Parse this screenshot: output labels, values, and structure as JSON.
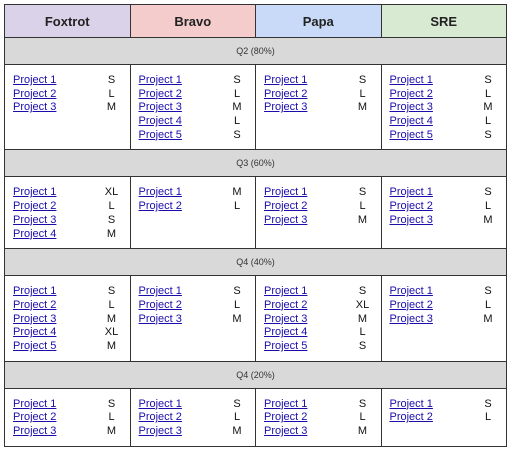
{
  "headers": [
    "Foxtrot",
    "Bravo",
    "Papa",
    "SRE"
  ],
  "header_colors": [
    "#d9d2e9",
    "#f4cccc",
    "#c9daf8",
    "#d9ead3"
  ],
  "quarters": [
    {
      "label": "Q2 (80%)",
      "teams": [
        [
          {
            "project": "Project 1",
            "size": "S"
          },
          {
            "project": "Project 2",
            "size": "L"
          },
          {
            "project": "Project 3",
            "size": "M"
          }
        ],
        [
          {
            "project": "Project 1",
            "size": "S"
          },
          {
            "project": "Project 2",
            "size": "L"
          },
          {
            "project": "Project 3",
            "size": "M"
          },
          {
            "project": "Project 4",
            "size": "L"
          },
          {
            "project": "Project 5",
            "size": "S"
          }
        ],
        [
          {
            "project": "Project 1",
            "size": "S"
          },
          {
            "project": "Project 2",
            "size": "L"
          },
          {
            "project": "Project 3",
            "size": "M"
          }
        ],
        [
          {
            "project": "Project 1",
            "size": "S"
          },
          {
            "project": "Project 2",
            "size": "L"
          },
          {
            "project": "Project 3",
            "size": "M"
          },
          {
            "project": "Project 4",
            "size": "L"
          },
          {
            "project": "Project 5",
            "size": "S"
          }
        ]
      ]
    },
    {
      "label": "Q3 (60%)",
      "teams": [
        [
          {
            "project": "Project 1",
            "size": "XL"
          },
          {
            "project": "Project 2",
            "size": "L"
          },
          {
            "project": "Project 3",
            "size": "S"
          },
          {
            "project": "Project 4",
            "size": "M"
          }
        ],
        [
          {
            "project": "Project 1",
            "size": "M"
          },
          {
            "project": "Project 2",
            "size": "L"
          }
        ],
        [
          {
            "project": "Project 1",
            "size": "S"
          },
          {
            "project": "Project 2",
            "size": "L"
          },
          {
            "project": "Project 3",
            "size": "M"
          }
        ],
        [
          {
            "project": "Project 1",
            "size": "S"
          },
          {
            "project": "Project 2",
            "size": "L"
          },
          {
            "project": "Project 3",
            "size": "M"
          }
        ]
      ]
    },
    {
      "label": "Q4 (40%)",
      "teams": [
        [
          {
            "project": "Project 1",
            "size": "S"
          },
          {
            "project": "Project 2",
            "size": "L"
          },
          {
            "project": "Project 3",
            "size": "M"
          },
          {
            "project": "Project 4",
            "size": "XL"
          },
          {
            "project": "Project 5",
            "size": "M"
          }
        ],
        [
          {
            "project": "Project 1",
            "size": "S"
          },
          {
            "project": "Project 2",
            "size": "L"
          },
          {
            "project": "Project 3",
            "size": "M"
          }
        ],
        [
          {
            "project": "Project 1",
            "size": "S"
          },
          {
            "project": "Project 2",
            "size": "XL"
          },
          {
            "project": "Project 3",
            "size": "M"
          },
          {
            "project": "Project 4",
            "size": "L"
          },
          {
            "project": "Project 5",
            "size": "S"
          }
        ],
        [
          {
            "project": "Project 1",
            "size": "S"
          },
          {
            "project": "Project 2",
            "size": "L"
          },
          {
            "project": "Project 3",
            "size": "M"
          }
        ]
      ]
    },
    {
      "label": "Q4 (20%)",
      "teams": [
        [
          {
            "project": "Project 1",
            "size": "S"
          },
          {
            "project": "Project 2",
            "size": "L"
          },
          {
            "project": "Project 3",
            "size": "M"
          }
        ],
        [
          {
            "project": "Project 1",
            "size": "S"
          },
          {
            "project": "Project 2",
            "size": "L"
          },
          {
            "project": "Project 3",
            "size": "M"
          }
        ],
        [
          {
            "project": "Project 1",
            "size": "S"
          },
          {
            "project": "Project 2",
            "size": "L"
          },
          {
            "project": "Project 3",
            "size": "M"
          }
        ],
        [
          {
            "project": "Project 1",
            "size": "S"
          },
          {
            "project": "Project 2",
            "size": "L"
          }
        ]
      ]
    }
  ]
}
